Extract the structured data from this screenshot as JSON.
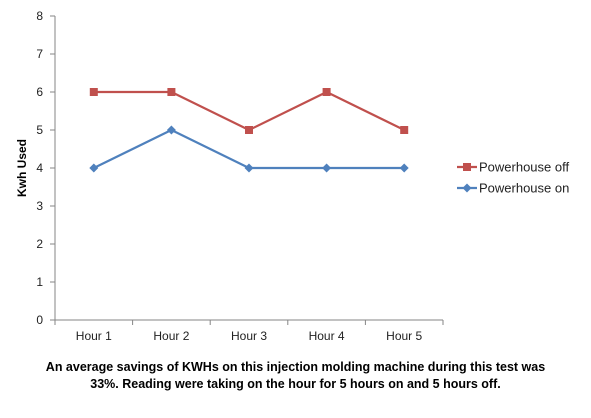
{
  "chart_data": {
    "type": "line",
    "categories": [
      "Hour 1",
      "Hour 2",
      "Hour 3",
      "Hour 4",
      "Hour 5"
    ],
    "series": [
      {
        "name": "Powerhouse off",
        "values": [
          6,
          6,
          5,
          6,
          5
        ],
        "color": "#c0504d",
        "marker": "square"
      },
      {
        "name": "Powerhouse on",
        "values": [
          4,
          5,
          4,
          4,
          4
        ],
        "color": "#4f81bd",
        "marker": "diamond"
      }
    ],
    "ylabel": "Kwh Used",
    "ylim": [
      0,
      8
    ],
    "yticks": [
      0,
      1,
      2,
      3,
      4,
      5,
      6,
      7,
      8
    ],
    "grid": false,
    "legend": "right"
  },
  "caption": {
    "line1": "An average savings of KWHs on this injection molding machine during this test was",
    "line2": "33%. Reading were taking on the hour for 5 hours on and 5 hours off."
  }
}
